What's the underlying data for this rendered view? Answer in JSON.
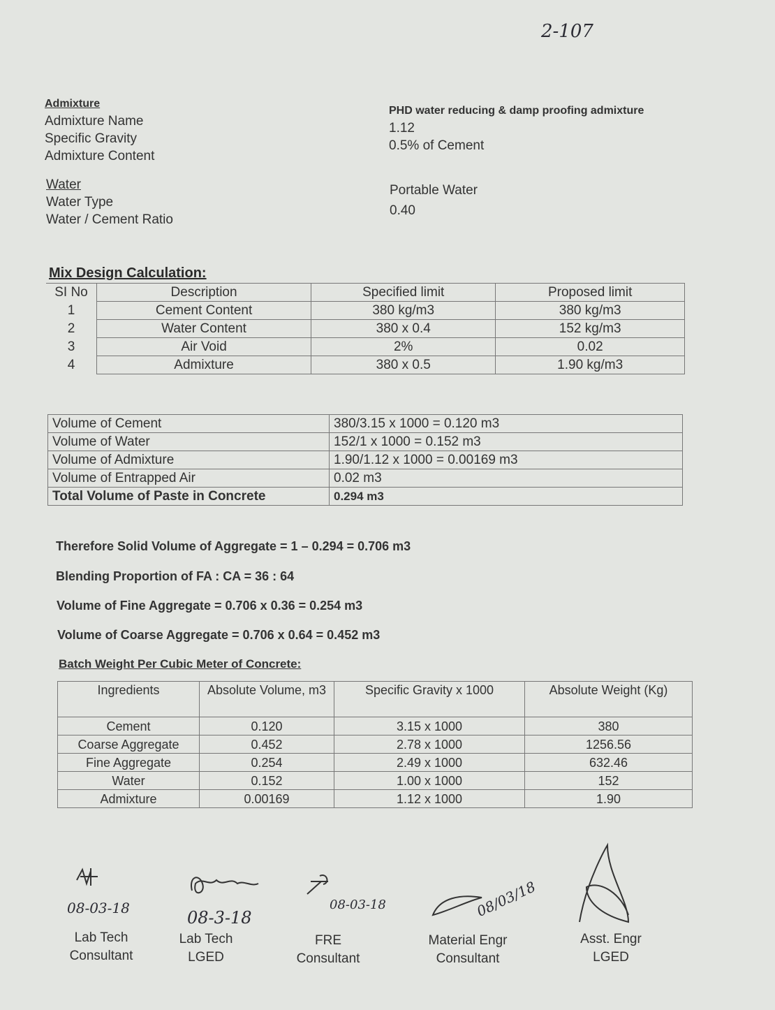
{
  "page_ref": "2-107",
  "admixture": {
    "heading": "Admixture",
    "rows": [
      {
        "label": "Admixture Name",
        "value": "PHD water reducing & damp proofing admixture"
      },
      {
        "label": "Specific Gravity",
        "value": "1.12"
      },
      {
        "label": "Admixture Content",
        "value": "0.5% of Cement"
      }
    ]
  },
  "water": {
    "heading": "Water",
    "rows": [
      {
        "label": "Water Type",
        "value": "Portable Water"
      },
      {
        "label": "Water / Cement Ratio",
        "value": "0.40"
      }
    ]
  },
  "mix": {
    "heading": "Mix Design Calculation:",
    "headers": [
      "SI No",
      "Description",
      "Specified limit",
      "Proposed limit"
    ],
    "rows": [
      [
        "1",
        "Cement Content",
        "380 kg/m3",
        "380 kg/m3"
      ],
      [
        "2",
        "Water Content",
        "380 x 0.4",
        "152 kg/m3"
      ],
      [
        "3",
        "Air Void",
        "2%",
        "0.02"
      ],
      [
        "4",
        "Admixture",
        "380 x 0.5",
        "1.90 kg/m3"
      ]
    ]
  },
  "volume": {
    "rows": [
      [
        "Volume of Cement",
        "380/3.15 x 1000 = 0.120 m3"
      ],
      [
        "Volume of Water",
        "152/1 x 1000 = 0.152 m3"
      ],
      [
        "Volume of Admixture",
        "1.90/1.12 x 1000 = 0.00169 m3"
      ],
      [
        "Volume of Entrapped Air",
        "0.02 m3"
      ],
      [
        "Total Volume of Paste in Concrete",
        "0.294 m3"
      ]
    ]
  },
  "calcs": [
    "Therefore Solid Volume of Aggregate = 1 – 0.294 = 0.706 m3",
    "Blending Proportion of FA : CA = 36 : 64",
    "Volume of Fine Aggregate = 0.706 x 0.36 = 0.254 m3",
    "Volume of Coarse Aggregate = 0.706 x 0.64 = 0.452 m3"
  ],
  "batch": {
    "heading": "Batch Weight Per Cubic Meter of Concrete:",
    "headers": [
      "Ingredients",
      "Absolute Volume, m3",
      "Specific Gravity x 1000",
      "Absolute Weight (Kg)"
    ],
    "rows": [
      [
        "Cement",
        "0.120",
        "3.15 x 1000",
        "380"
      ],
      [
        "Coarse Aggregate",
        "0.452",
        "2.78 x 1000",
        "1256.56"
      ],
      [
        "Fine Aggregate",
        "0.254",
        "2.49 x 1000",
        "632.46"
      ],
      [
        "Water",
        "0.152",
        "1.00 x 1000",
        "152"
      ],
      [
        "Admixture",
        "0.00169",
        "1.12 x 1000",
        "1.90"
      ]
    ]
  },
  "signatures": [
    {
      "date": "08-03-18",
      "role": "Lab Tech",
      "org": "Consultant"
    },
    {
      "date": "08-3-18",
      "role": "Lab Tech",
      "org": "LGED"
    },
    {
      "date": "08-03-18",
      "role": "FRE",
      "org": "Consultant"
    },
    {
      "date": "08/03/18",
      "role": "Material Engr",
      "org": "Consultant"
    },
    {
      "date": "",
      "role": "Asst. Engr",
      "org": "LGED"
    }
  ]
}
